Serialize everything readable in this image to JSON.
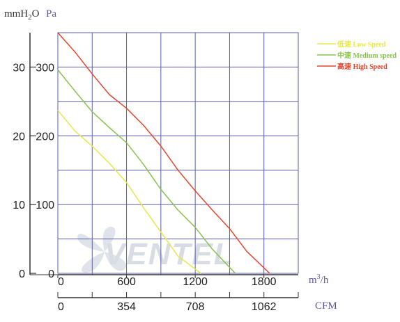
{
  "chart_data": {
    "type": "line",
    "title": "",
    "units": {
      "left_outer": "mmH2O",
      "left_inner": "Pa",
      "x_top": "m³/h",
      "x_bottom": "CFM"
    },
    "y_outer_ticks": [
      "0",
      "10",
      "20",
      "30"
    ],
    "y_inner_ticks": [
      "0",
      "100",
      "200",
      "300"
    ],
    "x_top_ticks": [
      "0",
      "600",
      "1200",
      "1800"
    ],
    "x_bottom_ticks": [
      "0",
      "354",
      "708",
      "1062"
    ],
    "xlim": [
      0,
      2100
    ],
    "ylim": [
      0,
      350
    ],
    "grid": true,
    "legend_position": "top-right",
    "series": [
      {
        "name": "低速 Low Speed",
        "color": "#e6e84a",
        "points": [
          [
            0,
            237
          ],
          [
            150,
            207
          ],
          [
            300,
            185
          ],
          [
            450,
            160
          ],
          [
            600,
            132
          ],
          [
            750,
            95
          ],
          [
            900,
            60
          ],
          [
            1050,
            25
          ],
          [
            1250,
            0
          ]
        ]
      },
      {
        "name": "中速 Medium speed",
        "color": "#88c34a",
        "points": [
          [
            0,
            296
          ],
          [
            150,
            265
          ],
          [
            300,
            235
          ],
          [
            450,
            212
          ],
          [
            600,
            190
          ],
          [
            750,
            158
          ],
          [
            900,
            122
          ],
          [
            1050,
            92
          ],
          [
            1200,
            67
          ],
          [
            1350,
            35
          ],
          [
            1550,
            0
          ]
        ]
      },
      {
        "name": "高速 High Speed",
        "color": "#e8452c",
        "points": [
          [
            0,
            350
          ],
          [
            150,
            322
          ],
          [
            300,
            290
          ],
          [
            450,
            260
          ],
          [
            600,
            240
          ],
          [
            750,
            215
          ],
          [
            900,
            185
          ],
          [
            1050,
            150
          ],
          [
            1200,
            120
          ],
          [
            1350,
            92
          ],
          [
            1500,
            65
          ],
          [
            1650,
            32
          ],
          [
            1850,
            0
          ]
        ]
      }
    ]
  },
  "watermark": "VENTEL"
}
